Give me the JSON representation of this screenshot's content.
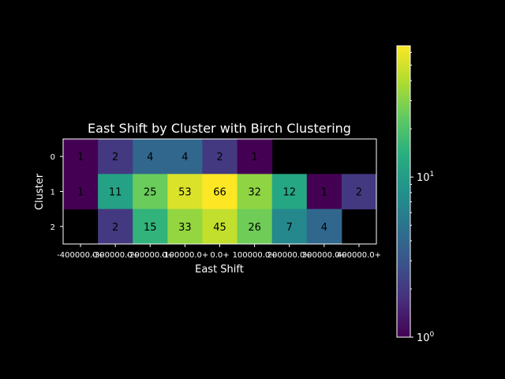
{
  "chart_data": {
    "type": "heatmap",
    "title": "East Shift by Cluster with Birch Clustering",
    "xlabel": "East Shift",
    "ylabel": "Cluster",
    "x_tick_labels": [
      "-400000.0+",
      "-300000.0+",
      "-200000.0+",
      "-100000.0+",
      "0.0+",
      "100000.0+",
      "200000.0+",
      "300000.0+",
      "400000.0+"
    ],
    "y_tick_labels": [
      "0",
      "1",
      "2"
    ],
    "values": [
      [
        1,
        2,
        4,
        4,
        2,
        1,
        null,
        null,
        null
      ],
      [
        1,
        11,
        25,
        53,
        66,
        32,
        12,
        1,
        2
      ],
      [
        null,
        2,
        15,
        33,
        45,
        26,
        7,
        4,
        null
      ]
    ],
    "colorbar": {
      "scale": "log",
      "colormap": "viridis",
      "range": [
        1,
        66
      ],
      "tick_labels": [
        "10^0",
        "10^1"
      ]
    },
    "background_color": "#000000"
  }
}
